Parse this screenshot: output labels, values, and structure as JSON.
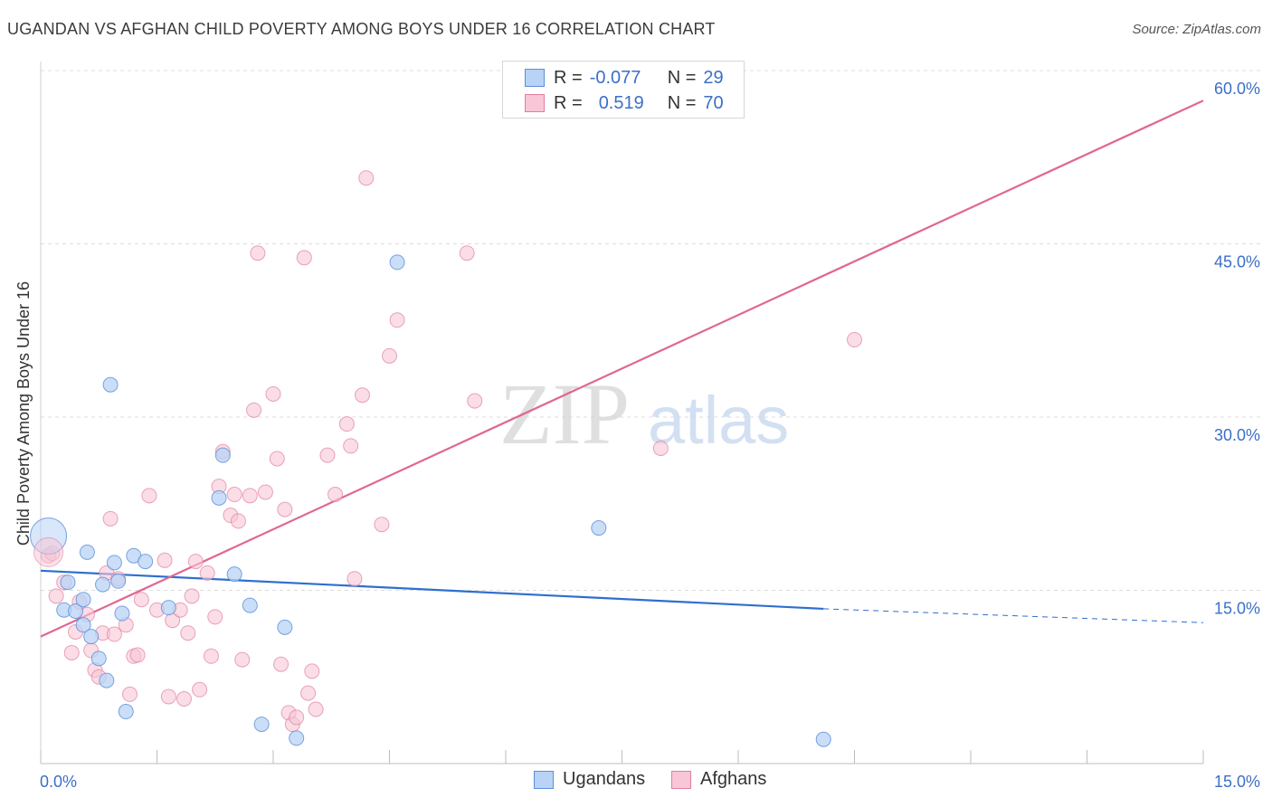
{
  "title": "UGANDAN VS AFGHAN CHILD POVERTY AMONG BOYS UNDER 16 CORRELATION CHART",
  "source": "Source: ZipAtlas.com",
  "watermark": {
    "zip": "ZIP",
    "atlas": "atlas"
  },
  "legend": {
    "rows": [
      {
        "r_label": "R =",
        "r_value": "-0.077",
        "n_label": "N =",
        "n_value": "29"
      },
      {
        "r_label": "R =",
        "r_value": "0.519",
        "n_label": "N =",
        "n_value": "70"
      }
    ]
  },
  "bottom_legend": {
    "ugandans": "Ugandans",
    "afghans": "Afghans"
  },
  "colors": {
    "ugandan_fill": "#b8d3f5",
    "ugandan_stroke": "#5b8fd9",
    "ugandan_line": "#2f6fcf",
    "afghan_fill": "#f8c6d6",
    "afghan_stroke": "#e07fa0",
    "afghan_line": "#e06792",
    "tick_label": "#3b6fc8",
    "grid": "#dcdcdc"
  },
  "chart_data": {
    "type": "scatter",
    "title": "UGANDAN VS AFGHAN CHILD POVERTY AMONG BOYS UNDER 16 CORRELATION CHART",
    "xlabel": "",
    "ylabel": "Child Poverty Among Boys Under 16",
    "xlim": [
      0,
      15
    ],
    "ylim": [
      0,
      60
    ],
    "x_tick_labels": [
      "0.0%",
      "15.0%"
    ],
    "y_ticks": [
      15,
      30,
      45,
      60
    ],
    "y_tick_labels": [
      "15.0%",
      "30.0%",
      "45.0%",
      "60.0%"
    ],
    "grid": true,
    "legend_position": "top-center",
    "series": [
      {
        "name": "Ugandans",
        "points": [
          [
            0.1,
            19.7
          ],
          [
            0.3,
            13.3
          ],
          [
            0.35,
            15.7
          ],
          [
            0.45,
            13.2
          ],
          [
            0.55,
            12.0
          ],
          [
            0.55,
            14.2
          ],
          [
            0.6,
            18.3
          ],
          [
            0.65,
            11.0
          ],
          [
            0.75,
            9.1
          ],
          [
            0.8,
            15.5
          ],
          [
            0.85,
            7.2
          ],
          [
            0.9,
            32.8
          ],
          [
            0.95,
            17.4
          ],
          [
            1.0,
            15.8
          ],
          [
            1.05,
            13.0
          ],
          [
            1.1,
            4.5
          ],
          [
            1.2,
            18.0
          ],
          [
            1.35,
            17.5
          ],
          [
            1.65,
            13.5
          ],
          [
            2.3,
            23.0
          ],
          [
            2.35,
            26.7
          ],
          [
            2.5,
            16.4
          ],
          [
            2.7,
            13.7
          ],
          [
            2.85,
            3.4
          ],
          [
            3.15,
            11.8
          ],
          [
            3.3,
            2.2
          ],
          [
            4.6,
            43.4
          ],
          [
            7.2,
            20.4
          ],
          [
            10.1,
            2.1
          ]
        ],
        "trend": {
          "x": [
            0,
            10.1,
            15
          ],
          "y": [
            16.7,
            13.4,
            12.2
          ],
          "dashed_from": 10.1
        }
      },
      {
        "name": "Afghans",
        "points": [
          [
            0.1,
            18.0
          ],
          [
            0.15,
            18.2
          ],
          [
            0.2,
            14.5
          ],
          [
            0.3,
            15.7
          ],
          [
            0.4,
            9.6
          ],
          [
            0.45,
            11.4
          ],
          [
            0.5,
            14.0
          ],
          [
            0.6,
            12.9
          ],
          [
            0.65,
            9.8
          ],
          [
            0.7,
            8.1
          ],
          [
            0.75,
            7.5
          ],
          [
            0.8,
            11.3
          ],
          [
            0.85,
            16.5
          ],
          [
            0.9,
            21.2
          ],
          [
            0.95,
            11.2
          ],
          [
            1.0,
            16.0
          ],
          [
            1.1,
            12.0
          ],
          [
            1.15,
            6.0
          ],
          [
            1.2,
            9.3
          ],
          [
            1.25,
            9.4
          ],
          [
            1.3,
            14.2
          ],
          [
            1.4,
            23.2
          ],
          [
            1.5,
            13.3
          ],
          [
            1.6,
            17.6
          ],
          [
            1.65,
            5.8
          ],
          [
            1.7,
            12.4
          ],
          [
            1.8,
            13.3
          ],
          [
            1.85,
            5.6
          ],
          [
            1.9,
            11.3
          ],
          [
            1.95,
            14.5
          ],
          [
            2.0,
            17.5
          ],
          [
            2.05,
            6.4
          ],
          [
            2.15,
            16.5
          ],
          [
            2.2,
            9.3
          ],
          [
            2.25,
            12.7
          ],
          [
            2.3,
            24.0
          ],
          [
            2.35,
            27.0
          ],
          [
            2.45,
            21.5
          ],
          [
            2.5,
            23.3
          ],
          [
            2.55,
            21.0
          ],
          [
            2.6,
            9.0
          ],
          [
            2.7,
            23.2
          ],
          [
            2.75,
            30.6
          ],
          [
            2.8,
            44.2
          ],
          [
            2.9,
            23.5
          ],
          [
            3.0,
            32.0
          ],
          [
            3.05,
            26.4
          ],
          [
            3.1,
            8.6
          ],
          [
            3.15,
            22.0
          ],
          [
            3.2,
            4.4
          ],
          [
            3.25,
            3.4
          ],
          [
            3.3,
            4.0
          ],
          [
            3.4,
            43.8
          ],
          [
            3.45,
            6.1
          ],
          [
            3.5,
            8.0
          ],
          [
            3.55,
            4.7
          ],
          [
            3.7,
            26.7
          ],
          [
            3.8,
            23.3
          ],
          [
            3.95,
            29.4
          ],
          [
            4.0,
            27.5
          ],
          [
            4.05,
            16.0
          ],
          [
            4.15,
            31.9
          ],
          [
            4.2,
            50.7
          ],
          [
            4.4,
            20.7
          ],
          [
            4.5,
            35.3
          ],
          [
            4.6,
            38.4
          ],
          [
            5.5,
            44.2
          ],
          [
            5.6,
            31.4
          ],
          [
            8.0,
            27.3
          ],
          [
            10.5,
            36.7
          ]
        ],
        "trend": {
          "x": [
            0,
            15
          ],
          "y": [
            11.0,
            57.4
          ]
        }
      }
    ]
  }
}
